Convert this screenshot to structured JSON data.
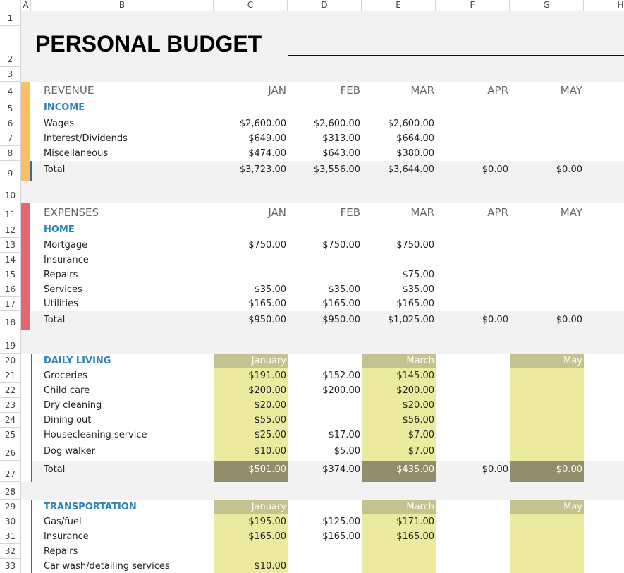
{
  "column_headers": [
    "A",
    "B",
    "C",
    "D",
    "E",
    "F",
    "G",
    "H"
  ],
  "row_numbers": [
    1,
    2,
    3,
    4,
    5,
    6,
    7,
    8,
    9,
    10,
    11,
    12,
    13,
    14,
    15,
    16,
    17,
    18,
    19,
    20,
    21,
    22,
    23,
    24,
    25,
    26,
    27,
    28,
    29,
    30,
    31,
    32,
    33
  ],
  "rows": [
    {},
    {
      "B": "PERSONAL BUDGET"
    },
    {},
    {
      "B": "REVENUE",
      "C": "JAN",
      "D": "FEB",
      "E": "MAR",
      "F": "APR",
      "G": "MAY"
    },
    {
      "B": "INCOME"
    },
    {
      "B": "Wages",
      "C": "$2,600.00",
      "D": "$2,600.00",
      "E": "$2,600.00"
    },
    {
      "B": "Interest/Dividends",
      "C": "$649.00",
      "D": "$313.00",
      "E": "$664.00"
    },
    {
      "B": "Miscellaneous",
      "C": "$474.00",
      "D": "$643.00",
      "E": "$380.00"
    },
    {
      "B": "Total",
      "C": "$3,723.00",
      "D": "$3,556.00",
      "E": "$3,644.00",
      "F": "$0.00",
      "G": "$0.00"
    },
    {},
    {
      "B": "EXPENSES",
      "C": "JAN",
      "D": "FEB",
      "E": "MAR",
      "F": "APR",
      "G": "MAY"
    },
    {
      "B": "HOME"
    },
    {
      "B": "Mortgage",
      "C": "$750.00",
      "D": "$750.00",
      "E": "$750.00"
    },
    {
      "B": "Insurance"
    },
    {
      "B": "Repairs",
      "E": "$75.00"
    },
    {
      "B": "Services",
      "C": "$35.00",
      "D": "$35.00",
      "E": "$35.00"
    },
    {
      "B": "Utilities",
      "C": "$165.00",
      "D": "$165.00",
      "E": "$165.00"
    },
    {
      "B": "Total",
      "C": "$950.00",
      "D": "$950.00",
      "E": "$1,025.00",
      "F": "$0.00",
      "G": "$0.00"
    },
    {},
    {
      "B": "DAILY LIVING",
      "C": "January",
      "E": "March",
      "G": "May"
    },
    {
      "B": "Groceries",
      "C": "$191.00",
      "D": "$152.00",
      "E": "$145.00"
    },
    {
      "B": "Child care",
      "C": "$200.00",
      "D": "$200.00",
      "E": "$200.00"
    },
    {
      "B": "Dry cleaning",
      "C": "$20.00",
      "E": "$20.00"
    },
    {
      "B": "Dining out",
      "C": "$55.00",
      "E": "$56.00"
    },
    {
      "B": "Housecleaning service",
      "C": "$25.00",
      "D": "$17.00",
      "E": "$7.00"
    },
    {
      "B": "Dog walker",
      "C": "$10.00",
      "D": "$5.00",
      "E": "$7.00"
    },
    {
      "B": "Total",
      "C": "$501.00",
      "D": "$374.00",
      "E": "$435.00",
      "F": "$0.00",
      "G": "$0.00"
    },
    {},
    {
      "B": "TRANSPORTATION",
      "C": "January",
      "E": "March",
      "G": "May"
    },
    {
      "B": "Gas/fuel",
      "C": "$195.00",
      "D": "$125.00",
      "E": "$171.00"
    },
    {
      "B": "Insurance",
      "C": "$165.00",
      "D": "$165.00",
      "E": "$165.00"
    },
    {
      "B": "Repairs"
    },
    {
      "B": "Car wash/detailing services",
      "C": "$10.00"
    }
  ]
}
